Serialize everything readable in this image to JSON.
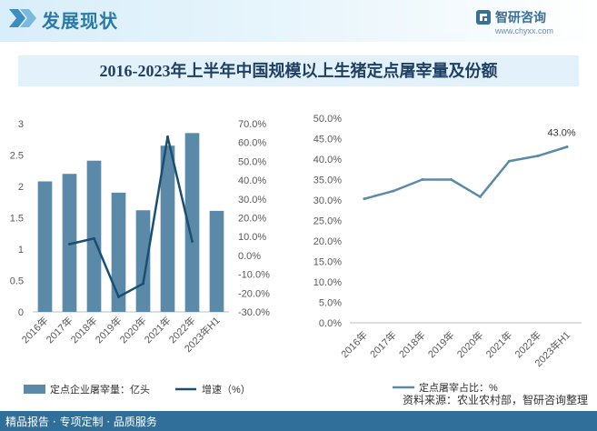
{
  "header": {
    "title": "发展现状",
    "brand_name": "智研咨询",
    "brand_url": "www.chyxx.com"
  },
  "footer": {
    "slogan": "精品报告 · 专项定制 · 品质服务",
    "source": "资料来源：农业农村部，智研咨询整理"
  },
  "colors": {
    "bar": "#5b8aa8",
    "growth_line": "#1b4f72",
    "share_line": "#5b8aa8",
    "axis": "#bfbfbf",
    "tick_text": "#595959"
  },
  "chart_data": [
    {
      "type": "bar",
      "title": "2016-2023年上半年中国规模以上生猪定点屠宰量及份额",
      "categories": [
        "2016年",
        "2017年",
        "2018年",
        "2019年",
        "2020年",
        "2021年",
        "2022年",
        "2023年H1"
      ],
      "series": [
        {
          "name": "定点企业屠宰量：亿头",
          "type": "bar",
          "axis": "left",
          "values": [
            2.08,
            2.2,
            2.41,
            1.9,
            1.62,
            2.65,
            2.85,
            1.61
          ]
        },
        {
          "name": "增速（%）",
          "type": "line",
          "axis": "right",
          "values": [
            null,
            6.0,
            9.0,
            -22.0,
            -15.0,
            63.0,
            7.5,
            null
          ]
        }
      ],
      "y_left": {
        "min": 0,
        "max": 3,
        "ticks": [
          "0",
          "0.5",
          "1",
          "1.5",
          "2",
          "2.5",
          "3"
        ],
        "tick_values": [
          0,
          0.5,
          1,
          1.5,
          2,
          2.5,
          3
        ]
      },
      "y_right": {
        "min": -30,
        "max": 70,
        "ticks": [
          "-30.0%",
          "-20.0%",
          "-10.0%",
          "0.0%",
          "10.0%",
          "20.0%",
          "30.0%",
          "40.0%",
          "50.0%",
          "60.0%",
          "70.0%"
        ],
        "tick_values": [
          -30,
          -20,
          -10,
          0,
          10,
          20,
          30,
          40,
          50,
          60,
          70
        ]
      },
      "legend_position": "bottom",
      "grid": false
    },
    {
      "type": "line",
      "categories": [
        "2016年",
        "2017年",
        "2018年",
        "2019年",
        "2020年",
        "2021年",
        "2022年",
        "2023年H1"
      ],
      "series": [
        {
          "name": "定点屠宰占比：%",
          "values": [
            30.3,
            32.2,
            35.0,
            35.0,
            30.8,
            39.5,
            40.8,
            43.0
          ]
        }
      ],
      "y": {
        "min": 0,
        "max": 50,
        "ticks": [
          "0.0%",
          "5.0%",
          "10.0%",
          "15.0%",
          "20.0%",
          "25.0%",
          "30.0%",
          "35.0%",
          "40.0%",
          "45.0%",
          "50.0%"
        ],
        "tick_values": [
          0,
          5,
          10,
          15,
          20,
          25,
          30,
          35,
          40,
          45,
          50
        ]
      },
      "data_labels": [
        {
          "index": 7,
          "text": "43.0%"
        }
      ],
      "legend_position": "bottom",
      "grid": false
    }
  ]
}
